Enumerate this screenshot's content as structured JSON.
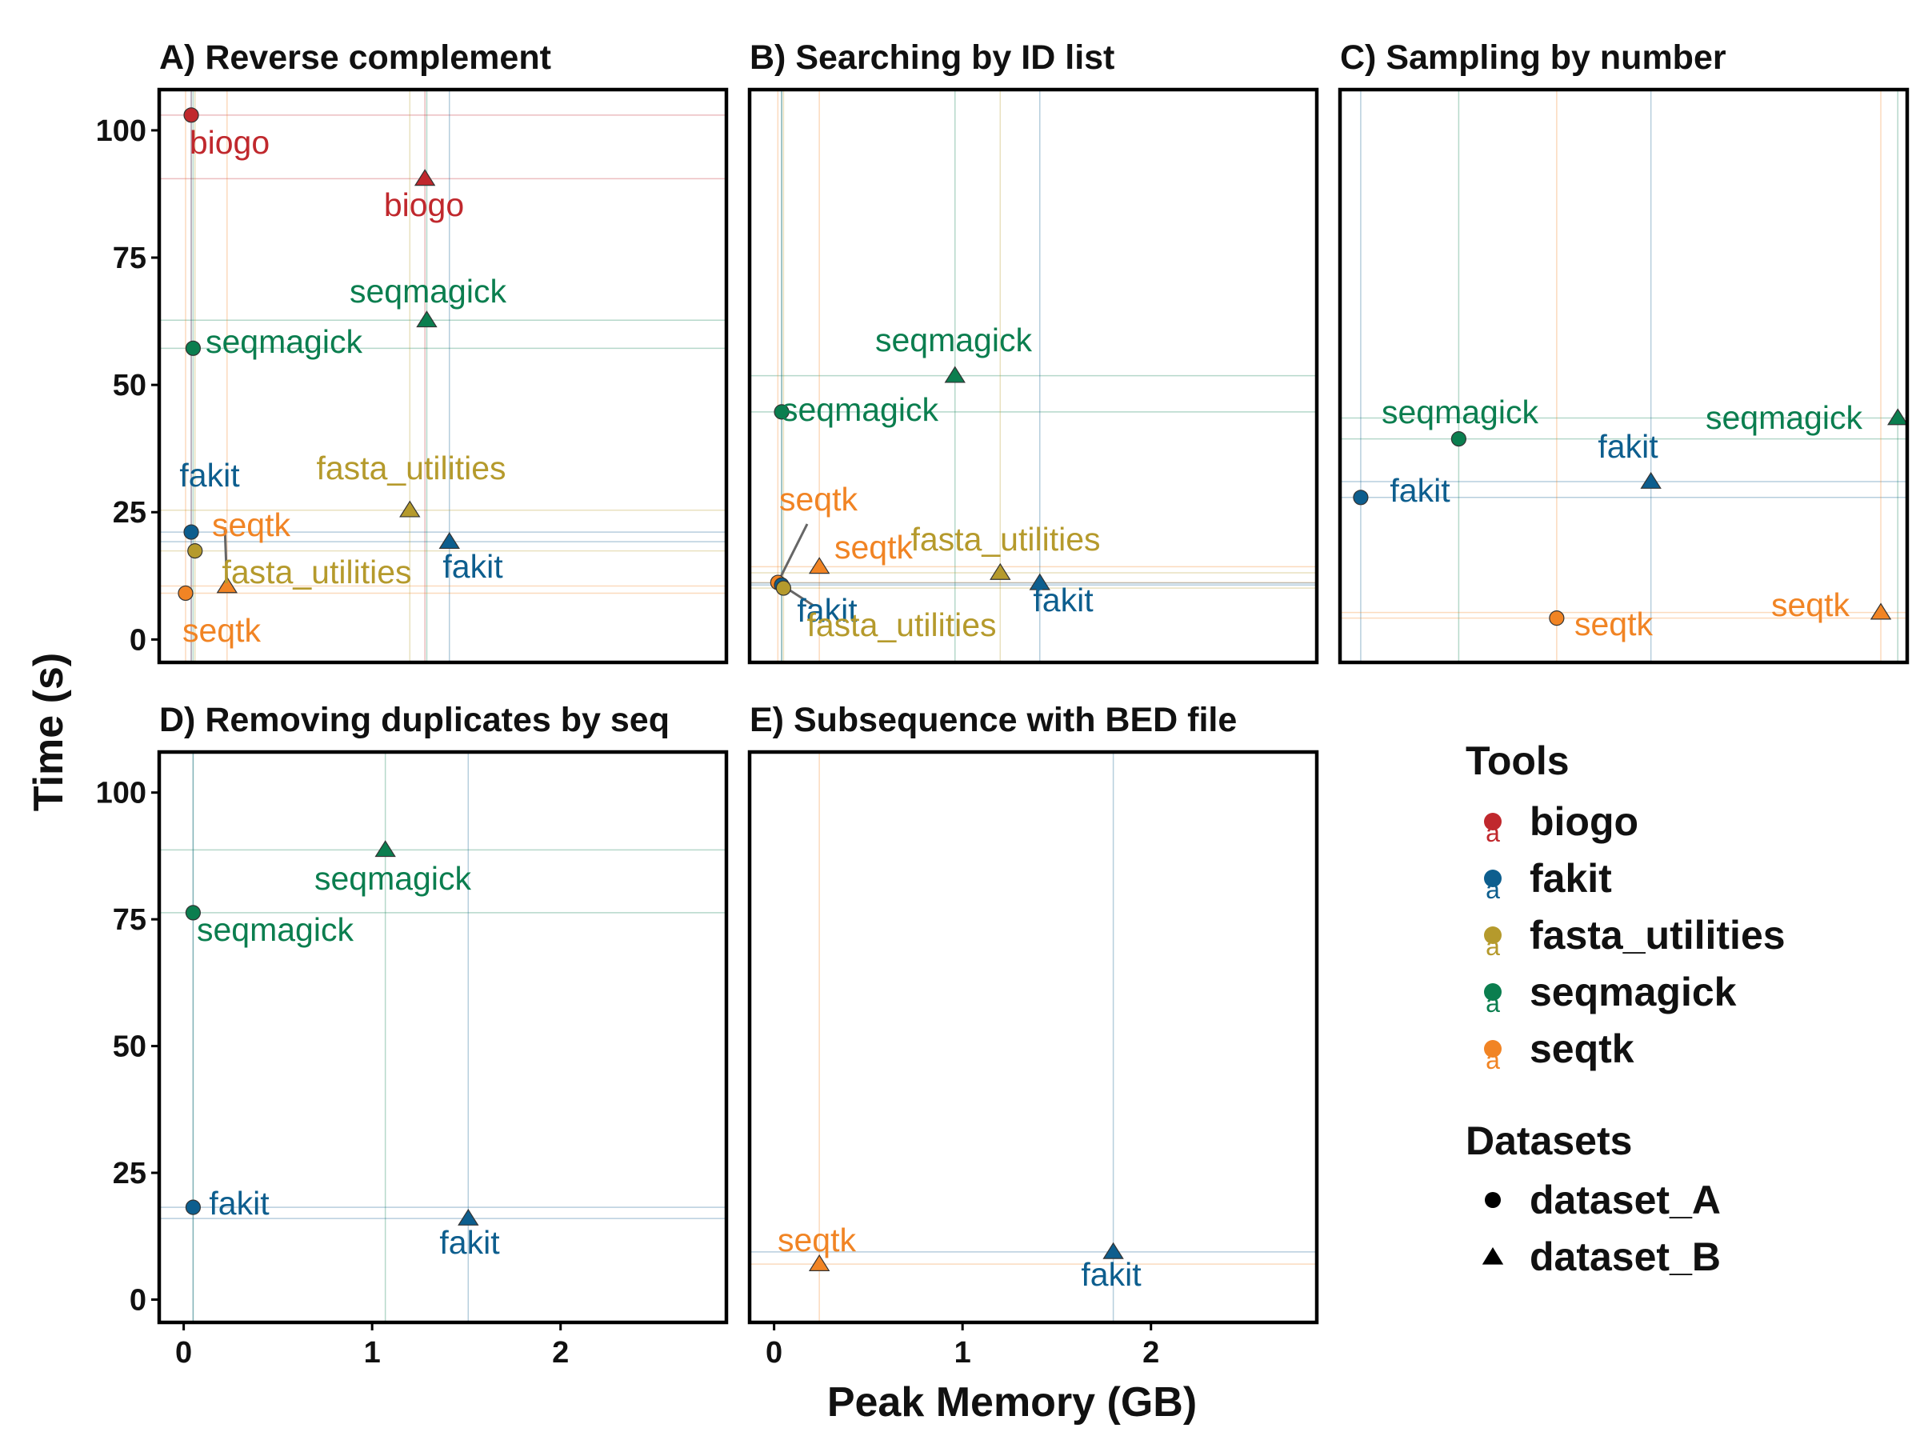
{
  "colors": {
    "biogo": "#c0282d",
    "fakit": "#0d5e8e",
    "fasta_utilities": "#b59a2c",
    "seqmagick": "#0b7e4f",
    "seqtk": "#f18424"
  },
  "chart_data": {
    "type": "scatter",
    "xlabel": "Peak Memory (GB)",
    "ylabel": "Time (s)",
    "xlim": [
      -0.13,
      2.88
    ],
    "ylim": [
      -4.5,
      108
    ],
    "xticks": [
      0,
      1,
      2
    ],
    "xtick_labels": [
      "0",
      "1",
      "2"
    ],
    "yticks": [
      0,
      25,
      50,
      75,
      100
    ],
    "ytick_labels": [
      "0",
      "25",
      "50",
      "75",
      "100"
    ],
    "grid": false,
    "legend": {
      "placement": "right",
      "tools_title": "Tools",
      "tools": [
        "biogo",
        "fakit",
        "fasta_utilities",
        "seqmagick",
        "seqtk"
      ],
      "datasets_title": "Datasets",
      "datasets": [
        "dataset_A",
        "dataset_B"
      ],
      "key_glyph": "a"
    },
    "panels": [
      {
        "title": "A) Reverse complement",
        "points": [
          {
            "tool": "biogo",
            "dataset": "dataset_A",
            "x": 0.04,
            "y": 103,
            "label": "biogo"
          },
          {
            "tool": "biogo",
            "dataset": "dataset_B",
            "x": 1.28,
            "y": 90.5,
            "label": "biogo"
          },
          {
            "tool": "seqmagick",
            "dataset": "dataset_A",
            "x": 0.05,
            "y": 57.2,
            "label": "seqmagick"
          },
          {
            "tool": "seqmagick",
            "dataset": "dataset_B",
            "x": 1.29,
            "y": 62.7,
            "label": "seqmagick"
          },
          {
            "tool": "fakit",
            "dataset": "dataset_A",
            "x": 0.04,
            "y": 21.1,
            "label": "fakit"
          },
          {
            "tool": "fakit",
            "dataset": "dataset_B",
            "x": 1.41,
            "y": 19.2,
            "label": "fakit"
          },
          {
            "tool": "fasta_utilities",
            "dataset": "dataset_A",
            "x": 0.06,
            "y": 17.4,
            "label": "fasta_utilities"
          },
          {
            "tool": "fasta_utilities",
            "dataset": "dataset_B",
            "x": 1.2,
            "y": 25.4,
            "label": "fasta_utilities"
          },
          {
            "tool": "seqtk",
            "dataset": "dataset_A",
            "x": 0.01,
            "y": 9.1,
            "label": "seqtk"
          },
          {
            "tool": "seqtk",
            "dataset": "dataset_B",
            "x": 0.23,
            "y": 10.5,
            "label": "seqtk"
          }
        ]
      },
      {
        "title": "B) Searching by ID list",
        "points": [
          {
            "tool": "seqmagick",
            "dataset": "dataset_A",
            "x": 0.04,
            "y": 44.7,
            "label": "seqmagick"
          },
          {
            "tool": "seqmagick",
            "dataset": "dataset_B",
            "x": 0.96,
            "y": 51.8,
            "label": "seqmagick"
          },
          {
            "tool": "seqtk",
            "dataset": "dataset_A",
            "x": 0.02,
            "y": 11.2,
            "label": "seqtk"
          },
          {
            "tool": "seqtk",
            "dataset": "dataset_B",
            "x": 0.24,
            "y": 14.3,
            "label": "seqtk"
          },
          {
            "tool": "fakit",
            "dataset": "dataset_A",
            "x": 0.04,
            "y": 10.7,
            "label": "fakit"
          },
          {
            "tool": "fakit",
            "dataset": "dataset_B",
            "x": 1.41,
            "y": 11.1,
            "label": "fakit"
          },
          {
            "tool": "fasta_utilities",
            "dataset": "dataset_A",
            "x": 0.05,
            "y": 10.1,
            "label": "fasta_utilities"
          },
          {
            "tool": "fasta_utilities",
            "dataset": "dataset_B",
            "x": 1.2,
            "y": 13.1,
            "label": "fasta_utilities"
          }
        ]
      },
      {
        "title": "C) Sampling by number",
        "points": [
          {
            "tool": "seqmagick",
            "dataset": "dataset_A",
            "x": 0.5,
            "y": 39.4,
            "label": "seqmagick"
          },
          {
            "tool": "seqmagick",
            "dataset": "dataset_B",
            "x": 2.83,
            "y": 43.5,
            "label": "seqmagick"
          },
          {
            "tool": "fakit",
            "dataset": "dataset_A",
            "x": -0.02,
            "y": 27.9,
            "label": "fakit"
          },
          {
            "tool": "fakit",
            "dataset": "dataset_B",
            "x": 1.52,
            "y": 31.0,
            "label": "fakit"
          },
          {
            "tool": "seqtk",
            "dataset": "dataset_A",
            "x": 1.02,
            "y": 4.2,
            "label": "seqtk"
          },
          {
            "tool": "seqtk",
            "dataset": "dataset_B",
            "x": 2.74,
            "y": 5.3,
            "label": "seqtk"
          }
        ]
      },
      {
        "title": "D) Removing duplicates by seq",
        "points": [
          {
            "tool": "seqmagick",
            "dataset": "dataset_A",
            "x": 0.05,
            "y": 76.3,
            "label": "seqmagick"
          },
          {
            "tool": "seqmagick",
            "dataset": "dataset_B",
            "x": 1.07,
            "y": 88.7,
            "label": "seqmagick"
          },
          {
            "tool": "fakit",
            "dataset": "dataset_A",
            "x": 0.05,
            "y": 18.2,
            "label": "fakit"
          },
          {
            "tool": "fakit",
            "dataset": "dataset_B",
            "x": 1.51,
            "y": 16.0,
            "label": "fakit"
          }
        ]
      },
      {
        "title": "E) Subsequence with BED file",
        "points": [
          {
            "tool": "seqtk",
            "dataset": "dataset_B",
            "x": 0.24,
            "y": 7.0,
            "label": "seqtk"
          },
          {
            "tool": "fakit",
            "dataset": "dataset_B",
            "x": 1.8,
            "y": 9.4,
            "label": "fakit"
          }
        ]
      }
    ]
  }
}
